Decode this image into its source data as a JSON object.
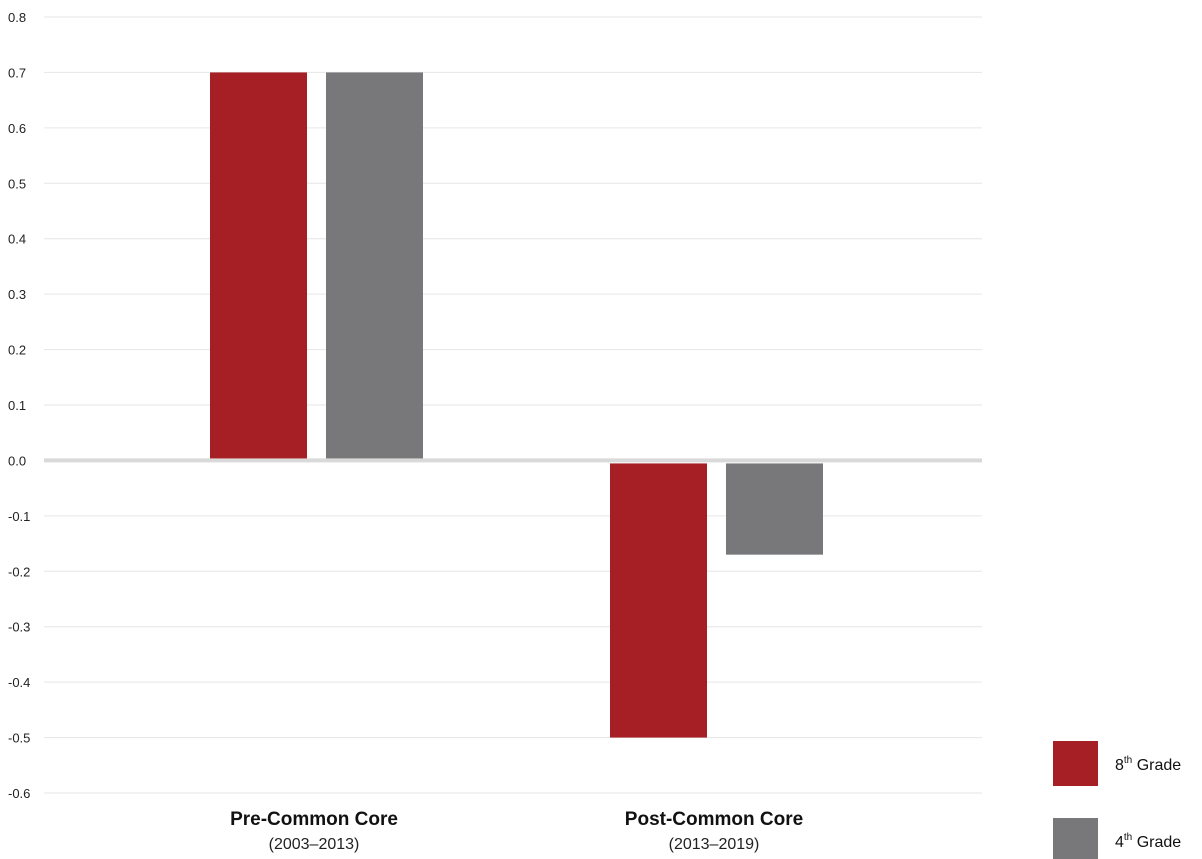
{
  "chart_data": {
    "type": "bar",
    "categories": [
      {
        "name": "Pre-Common Core",
        "sub": "(2003–2013)"
      },
      {
        "name": "Post-Common Core",
        "sub": "(2013–2019)"
      }
    ],
    "series": [
      {
        "name": "8th Grade",
        "legend_base": "8",
        "legend_sup": "th",
        "legend_rest": " Grade",
        "color": "#a61f24",
        "values": [
          0.7,
          -0.5
        ]
      },
      {
        "name": "4th Grade",
        "legend_base": "4",
        "legend_sup": "th",
        "legend_rest": " Grade",
        "color": "#78787a",
        "values": [
          0.7,
          -0.17
        ]
      }
    ],
    "ylim": [
      -0.6,
      0.8
    ],
    "yticks": [
      "0.8",
      "0.7",
      "0.6",
      "0.5",
      "0.4",
      "0.3",
      "0.2",
      "0.1",
      "0.0",
      "-0.1",
      "-0.2",
      "-0.3",
      "-0.4",
      "-0.5",
      "-0.6"
    ],
    "grid": true,
    "legend_position": "bottom-right",
    "title": "",
    "xlabel": "",
    "ylabel": ""
  }
}
